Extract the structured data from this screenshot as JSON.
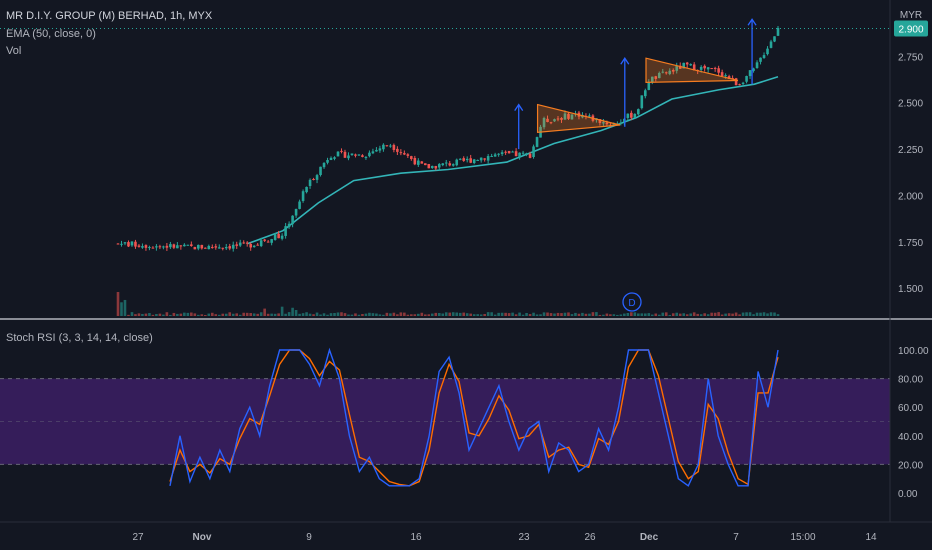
{
  "header": {
    "title": "MR D.I.Y. GROUP (M) BERHAD, 1h, MYX",
    "ema_label": "EMA (50, close, 0)",
    "vol_label": "Vol",
    "currency": "MYR",
    "rsi_label": "Stoch RSI (3, 3, 14, 14, close)",
    "dividend_marker": "D"
  },
  "colors": {
    "background": "#131722",
    "up": "#26a69a",
    "down": "#ef5350",
    "ema": "#33b5b8",
    "pattern": "#f57c20",
    "arrow": "#2962ff",
    "rsi_k": "#2962ff",
    "rsi_d": "#ff6d00",
    "rsi_band": "#3c1e64"
  },
  "chart_data": [
    {
      "type": "candlestick",
      "title": "MR D.I.Y. GROUP (M) BERHAD, 1h, MYX",
      "ylim": [
        1.35,
        3.0
      ],
      "y_ticks": [
        "1.500",
        "1.750",
        "2.000",
        "2.250",
        "2.500",
        "2.750",
        "2.900"
      ],
      "last_price": "2.900",
      "x_ticks": [
        "27",
        "Nov",
        "9",
        "16",
        "23",
        "26",
        "Dec",
        "7",
        "15:00",
        "14"
      ],
      "price_path": [
        {
          "t": 0.0,
          "close": 1.74
        },
        {
          "t": 3.0,
          "close": 1.72
        },
        {
          "t": 5.5,
          "close": 1.73
        },
        {
          "t": 7.0,
          "close": 1.79
        },
        {
          "t": 8.0,
          "close": 2.05
        },
        {
          "t": 9.0,
          "close": 2.22
        },
        {
          "t": 10.5,
          "close": 2.22
        },
        {
          "t": 11.5,
          "close": 2.28
        },
        {
          "t": 13.0,
          "close": 2.15
        },
        {
          "t": 14.5,
          "close": 2.18
        },
        {
          "t": 16.0,
          "close": 2.22
        },
        {
          "t": 17.5,
          "close": 2.22
        },
        {
          "t": 18.0,
          "close": 2.4
        },
        {
          "t": 19.5,
          "close": 2.44
        },
        {
          "t": 21.0,
          "close": 2.38
        },
        {
          "t": 22.0,
          "close": 2.45
        },
        {
          "t": 22.5,
          "close": 2.62
        },
        {
          "t": 24.0,
          "close": 2.7
        },
        {
          "t": 25.5,
          "close": 2.67
        },
        {
          "t": 26.3,
          "close": 2.6
        },
        {
          "t": 27.0,
          "close": 2.68
        },
        {
          "t": 28.0,
          "close": 2.9
        }
      ],
      "ema_path": [
        {
          "t": 5.5,
          "value": 1.74
        },
        {
          "t": 7.0,
          "value": 1.81
        },
        {
          "t": 8.5,
          "value": 1.96
        },
        {
          "t": 10.0,
          "value": 2.08
        },
        {
          "t": 12.0,
          "value": 2.12
        },
        {
          "t": 14.0,
          "value": 2.14
        },
        {
          "t": 16.5,
          "value": 2.18
        },
        {
          "t": 18.5,
          "value": 2.28
        },
        {
          "t": 20.5,
          "value": 2.35
        },
        {
          "t": 22.0,
          "value": 2.42
        },
        {
          "t": 23.5,
          "value": 2.52
        },
        {
          "t": 25.5,
          "value": 2.57
        },
        {
          "t": 27.0,
          "value": 2.6
        },
        {
          "t": 28.0,
          "value": 2.64
        }
      ],
      "triangles": [
        {
          "points": [
            [
              17.8,
              2.49
            ],
            [
              21.3,
              2.38
            ],
            [
              17.8,
              2.34
            ]
          ]
        },
        {
          "points": [
            [
              22.4,
              2.74
            ],
            [
              26.3,
              2.62
            ],
            [
              22.4,
              2.61
            ]
          ]
        }
      ],
      "arrows": [
        {
          "t": 17.0,
          "from": 2.25,
          "to": 2.49
        },
        {
          "t": 21.5,
          "from": 2.37,
          "to": 2.74
        },
        {
          "t": 26.9,
          "from": 2.6,
          "to": 2.95
        }
      ]
    },
    {
      "type": "line",
      "title": "Stoch RSI (3, 3, 14, 14, close)",
      "ylim": [
        -7,
        107
      ],
      "y_ticks": [
        "0.00",
        "20.00",
        "40.00",
        "60.00",
        "80.00",
        "100.00"
      ],
      "band": [
        20,
        80
      ],
      "series": [
        {
          "values": [
            5,
            40,
            8,
            25,
            10,
            30,
            15,
            45,
            60,
            40,
            75,
            100,
            100,
            100,
            90,
            75,
            100,
            80,
            40,
            15,
            25,
            10,
            5,
            5,
            5,
            10,
            40,
            85,
            95,
            70,
            30,
            45,
            60,
            75,
            50,
            30,
            45,
            50,
            15,
            35,
            30,
            15,
            20,
            45,
            30,
            60,
            100,
            100,
            100,
            70,
            40,
            10,
            5,
            20,
            80,
            40,
            20,
            5,
            5,
            85,
            60,
            100
          ]
        },
        {
          "values": [
            8,
            30,
            15,
            20,
            14,
            24,
            20,
            38,
            52,
            48,
            68,
            90,
            100,
            100,
            94,
            82,
            92,
            86,
            55,
            25,
            22,
            15,
            8,
            6,
            5,
            8,
            30,
            70,
            90,
            78,
            42,
            40,
            52,
            68,
            58,
            38,
            40,
            48,
            25,
            30,
            32,
            20,
            18,
            38,
            34,
            50,
            88,
            100,
            100,
            82,
            52,
            22,
            10,
            15,
            62,
            52,
            28,
            10,
            6,
            70,
            70,
            95
          ]
        }
      ]
    }
  ]
}
